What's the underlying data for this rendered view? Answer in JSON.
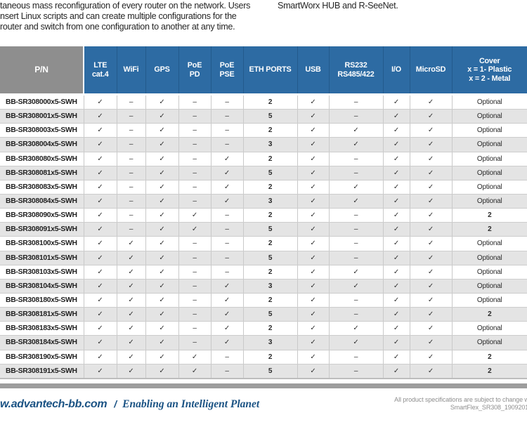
{
  "intro": {
    "left_lines": [
      "taneous mass reconfiguration of every router on the network. Users",
      "nsert Linux scripts and can create multiple configurations for the",
      "router and switch from one configuration to another at any time."
    ],
    "right_line": "SmartWorx HUB and R-SeeNet."
  },
  "table": {
    "columns": [
      "P/N",
      "LTE\ncat.4",
      "WiFi",
      "GPS",
      "PoE\nPD",
      "PoE\nPSE",
      "ETH PORTS",
      "USB",
      "RS232\nRS485/422",
      "I/O",
      "MicroSD",
      "Cover\nx = 1- Plastic\nx = 2 - Metal"
    ],
    "rows": [
      {
        "pn": "BB-SR308000x5-SWH",
        "cells": [
          "✓",
          "–",
          "✓",
          "–",
          "–",
          "2",
          "✓",
          "–",
          "✓",
          "✓",
          "Optional"
        ]
      },
      {
        "pn": "BB-SR308001x5-SWH",
        "cells": [
          "✓",
          "–",
          "✓",
          "–",
          "–",
          "5",
          "✓",
          "–",
          "✓",
          "✓",
          "Optional"
        ]
      },
      {
        "pn": "BB-SR308003x5-SWH",
        "cells": [
          "✓",
          "–",
          "✓",
          "–",
          "–",
          "2",
          "✓",
          "✓",
          "✓",
          "✓",
          "Optional"
        ]
      },
      {
        "pn": "BB-SR308004x5-SWH",
        "cells": [
          "✓",
          "–",
          "✓",
          "–",
          "–",
          "3",
          "✓",
          "✓",
          "✓",
          "✓",
          "Optional"
        ]
      },
      {
        "pn": "BB-SR308080x5-SWH",
        "cells": [
          "✓",
          "–",
          "✓",
          "–",
          "✓",
          "2",
          "✓",
          "–",
          "✓",
          "✓",
          "Optional"
        ]
      },
      {
        "pn": "BB-SR308081x5-SWH",
        "cells": [
          "✓",
          "–",
          "✓",
          "–",
          "✓",
          "5",
          "✓",
          "–",
          "✓",
          "✓",
          "Optional"
        ]
      },
      {
        "pn": "BB-SR308083x5-SWH",
        "cells": [
          "✓",
          "–",
          "✓",
          "–",
          "✓",
          "2",
          "✓",
          "✓",
          "✓",
          "✓",
          "Optional"
        ]
      },
      {
        "pn": "BB-SR308084x5-SWH",
        "cells": [
          "✓",
          "–",
          "✓",
          "–",
          "✓",
          "3",
          "✓",
          "✓",
          "✓",
          "✓",
          "Optional"
        ]
      },
      {
        "pn": "BB-SR308090x5-SWH",
        "cells": [
          "✓",
          "–",
          "✓",
          "✓",
          "–",
          "2",
          "✓",
          "–",
          "✓",
          "✓",
          "2"
        ]
      },
      {
        "pn": "BB-SR308091x5-SWH",
        "cells": [
          "✓",
          "–",
          "✓",
          "✓",
          "–",
          "5",
          "✓",
          "–",
          "✓",
          "✓",
          "2"
        ]
      },
      {
        "pn": "BB-SR308100x5-SWH",
        "cells": [
          "✓",
          "✓",
          "✓",
          "–",
          "–",
          "2",
          "✓",
          "–",
          "✓",
          "✓",
          "Optional"
        ]
      },
      {
        "pn": "BB-SR308101x5-SWH",
        "cells": [
          "✓",
          "✓",
          "✓",
          "–",
          "–",
          "5",
          "✓",
          "–",
          "✓",
          "✓",
          "Optional"
        ]
      },
      {
        "pn": "BB-SR308103x5-SWH",
        "cells": [
          "✓",
          "✓",
          "✓",
          "–",
          "–",
          "2",
          "✓",
          "✓",
          "✓",
          "✓",
          "Optional"
        ]
      },
      {
        "pn": "BB-SR308104x5-SWH",
        "cells": [
          "✓",
          "✓",
          "✓",
          "–",
          "✓",
          "3",
          "✓",
          "✓",
          "✓",
          "✓",
          "Optional"
        ]
      },
      {
        "pn": "BB-SR308180x5-SWH",
        "cells": [
          "✓",
          "✓",
          "✓",
          "–",
          "✓",
          "2",
          "✓",
          "–",
          "✓",
          "✓",
          "Optional"
        ]
      },
      {
        "pn": "BB-SR308181x5-SWH",
        "cells": [
          "✓",
          "✓",
          "✓",
          "–",
          "✓",
          "5",
          "✓",
          "–",
          "✓",
          "✓",
          "2"
        ]
      },
      {
        "pn": "BB-SR308183x5-SWH",
        "cells": [
          "✓",
          "✓",
          "✓",
          "–",
          "✓",
          "2",
          "✓",
          "✓",
          "✓",
          "✓",
          "Optional"
        ]
      },
      {
        "pn": "BB-SR308184x5-SWH",
        "cells": [
          "✓",
          "✓",
          "✓",
          "–",
          "✓",
          "3",
          "✓",
          "✓",
          "✓",
          "✓",
          "Optional"
        ]
      },
      {
        "pn": "BB-SR308190x5-SWH",
        "cells": [
          "✓",
          "✓",
          "✓",
          "✓",
          "–",
          "2",
          "✓",
          "–",
          "✓",
          "✓",
          "2"
        ]
      },
      {
        "pn": "BB-SR308191x5-SWH",
        "cells": [
          "✓",
          "✓",
          "✓",
          "✓",
          "–",
          "5",
          "✓",
          "–",
          "✓",
          "✓",
          "2"
        ]
      }
    ]
  },
  "footer": {
    "site": "w.advantech-bb.com",
    "separator": "/",
    "slogan": "Enabling an Intelligent Planet",
    "note_line1": "All product specifications are subject to change with",
    "note_line2": "SmartFlex_SR308_19092017d"
  },
  "colors": {
    "header_blue": "#2d6ba3",
    "header_gray": "#8e8e8e",
    "row_stripe": "#e4e4e4",
    "footer_bar": "#9d9d9d",
    "footer_blue": "#1b5384",
    "note_gray": "#8e8e8e"
  }
}
